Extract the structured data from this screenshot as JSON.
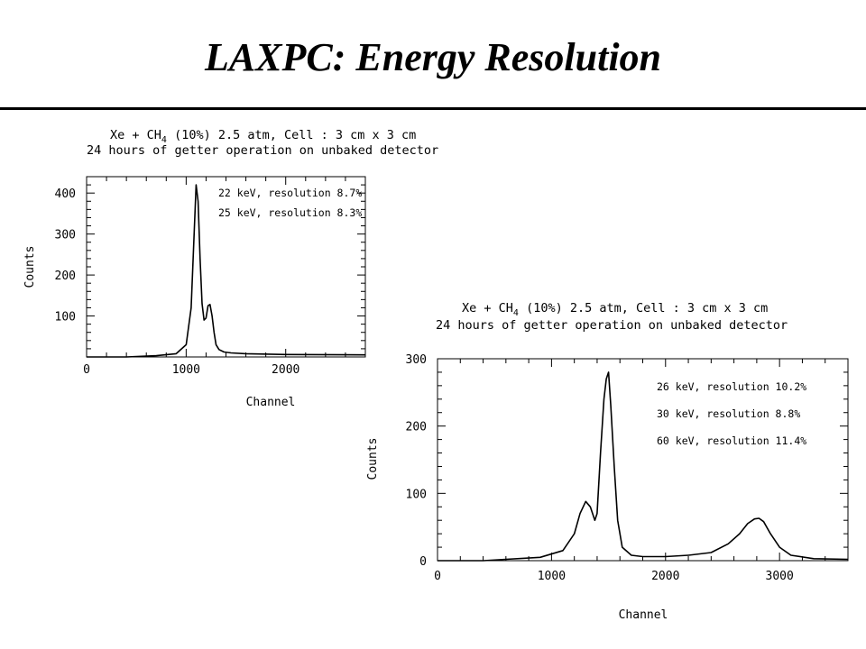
{
  "slide": {
    "title": "LAXPC: Energy Resolution"
  },
  "chart_data": [
    {
      "type": "line",
      "caption_line1_pre": "Xe + CH",
      "caption_line1_sub": "4",
      "caption_line1_post": " (10%) 2.5 atm, Cell : 3 cm x 3 cm",
      "caption_line2": "24 hours of getter operation on unbaked detector",
      "xlabel": "Channel",
      "ylabel": "Counts",
      "xlim": [
        0,
        2800
      ],
      "ylim": [
        0,
        440
      ],
      "xticks": [
        0,
        1000,
        2000
      ],
      "yticks": [
        100,
        200,
        300,
        400
      ],
      "annotations": [
        "22 keV, resolution 8.7%",
        "25 keV, resolution 8.3%"
      ],
      "series": [
        {
          "x": [
            0,
            400,
            700,
            900,
            1000,
            1050,
            1080,
            1100,
            1120,
            1140,
            1160,
            1180,
            1200,
            1220,
            1240,
            1260,
            1280,
            1300,
            1330,
            1380,
            1450,
            1600,
            2000,
            2800
          ],
          "y": [
            0,
            0,
            3,
            8,
            30,
            120,
            300,
            420,
            380,
            240,
            130,
            90,
            95,
            125,
            128,
            100,
            60,
            30,
            18,
            12,
            10,
            8,
            6,
            5
          ]
        }
      ]
    },
    {
      "type": "line",
      "caption_line1_pre": "Xe + CH",
      "caption_line1_sub": "4",
      "caption_line1_post": " (10%) 2.5 atm, Cell : 3 cm x 3 cm",
      "caption_line2": "24 hours of getter operation on unbaked detector",
      "xlabel": "Channel",
      "ylabel": "Counts",
      "xlim": [
        0,
        3600
      ],
      "ylim": [
        0,
        300
      ],
      "xticks": [
        0,
        1000,
        2000,
        3000
      ],
      "yticks": [
        0,
        100,
        200,
        300
      ],
      "annotations": [
        "26 keV, resolution 10.2%",
        "30 keV, resolution 8.8%",
        "60 keV, resolution 11.4%"
      ],
      "series": [
        {
          "x": [
            0,
            400,
            600,
            900,
            1100,
            1200,
            1250,
            1300,
            1340,
            1380,
            1400,
            1430,
            1460,
            1480,
            1500,
            1520,
            1550,
            1580,
            1620,
            1700,
            1800,
            2000,
            2200,
            2400,
            2550,
            2650,
            2720,
            2780,
            2820,
            2860,
            2920,
            3000,
            3100,
            3300,
            3600
          ],
          "y": [
            0,
            0,
            2,
            5,
            15,
            40,
            70,
            88,
            80,
            60,
            70,
            160,
            240,
            270,
            280,
            230,
            140,
            60,
            20,
            8,
            6,
            6,
            8,
            12,
            25,
            40,
            55,
            62,
            63,
            58,
            40,
            20,
            8,
            3,
            2
          ]
        }
      ]
    }
  ]
}
